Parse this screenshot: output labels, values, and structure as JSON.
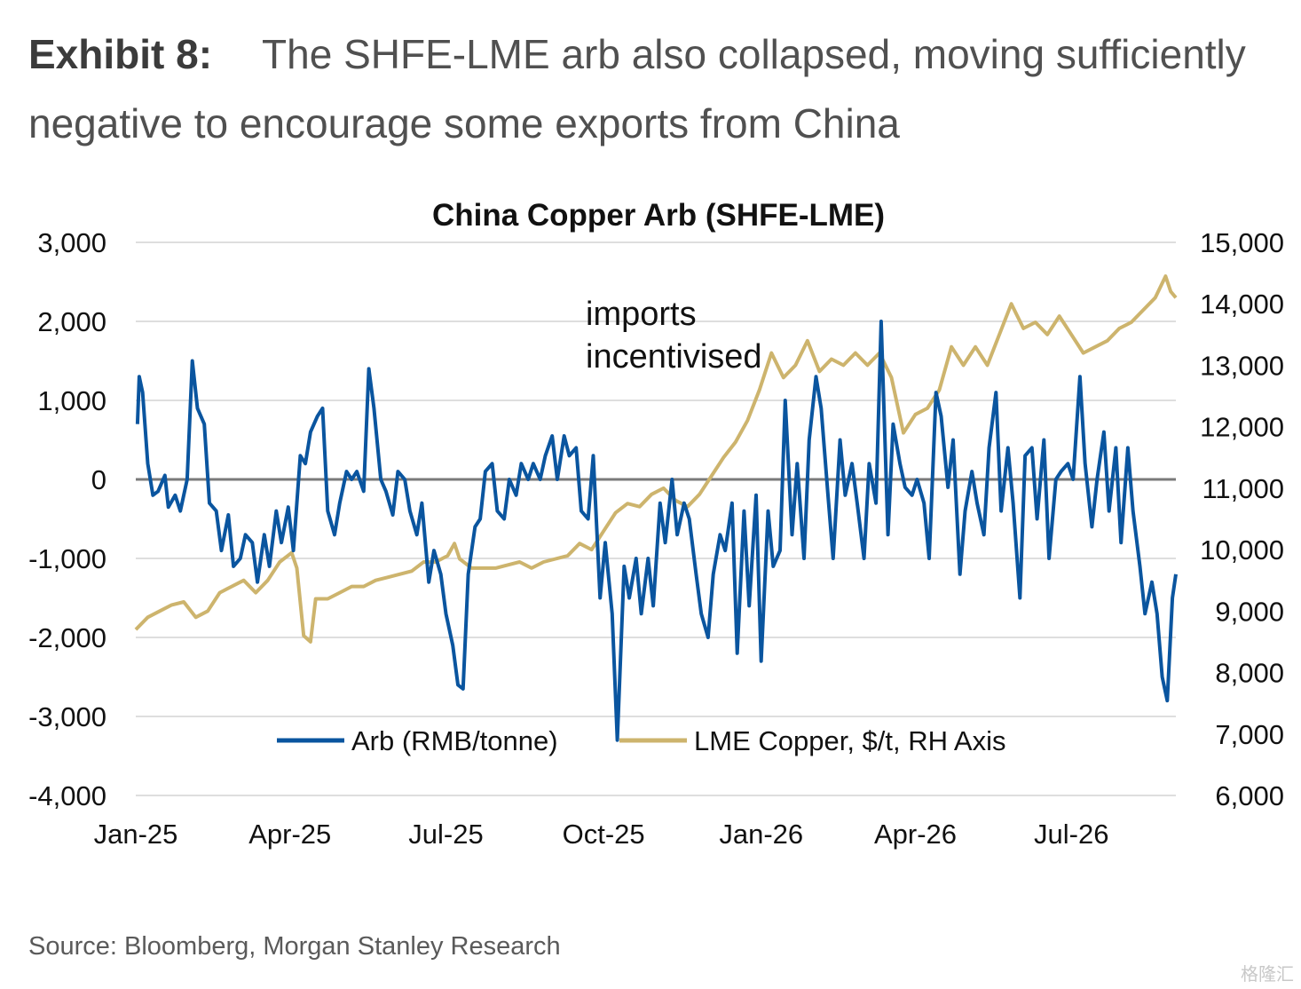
{
  "exhibit": {
    "label": "Exhibit 8:",
    "text": "The SHFE-LME arb also collapsed, moving sufficiently negative to encourage some exports from China"
  },
  "source": "Source: Bloomberg, Morgan Stanley Research",
  "watermark": "格隆汇",
  "chart_data": {
    "type": "line",
    "title": "China Copper Arb (SHFE-LME)",
    "annotation": "imports incentivised",
    "x_ticks": [
      "Jan-25",
      "Apr-25",
      "Jul-25",
      "Oct-25",
      "Jan-26",
      "Apr-26",
      "Jul-26"
    ],
    "y_left": {
      "ticks": [
        "3,000",
        "2,000",
        "1,000",
        "0",
        "-1,000",
        "-2,000",
        "-3,000",
        "-4,000"
      ],
      "min": -4000,
      "max": 3000
    },
    "y_right": {
      "ticks": [
        "15,000",
        "14,000",
        "13,000",
        "12,000",
        "11,000",
        "10,000",
        "9,000",
        "8,000",
        "7,000",
        "6,000"
      ],
      "min": 6000,
      "max": 15000
    },
    "x_range": [
      "2025-01-01",
      "2026-08-31"
    ],
    "grid": true,
    "zero_line": true,
    "legend_position": "bottom-center",
    "series": [
      {
        "name": "Arb (RMB/tonne)",
        "axis": "left",
        "color": "#0a559f",
        "points": [
          [
            "2025-01-02",
            700
          ],
          [
            "2025-01-03",
            1300
          ],
          [
            "2025-01-05",
            1100
          ],
          [
            "2025-01-08",
            200
          ],
          [
            "2025-01-11",
            -200
          ],
          [
            "2025-01-14",
            -150
          ],
          [
            "2025-01-18",
            50
          ],
          [
            "2025-01-20",
            -350
          ],
          [
            "2025-01-24",
            -200
          ],
          [
            "2025-01-27",
            -400
          ],
          [
            "2025-01-31",
            0
          ],
          [
            "2025-02-03",
            1500
          ],
          [
            "2025-02-06",
            900
          ],
          [
            "2025-02-10",
            700
          ],
          [
            "2025-02-13",
            -300
          ],
          [
            "2025-02-17",
            -400
          ],
          [
            "2025-02-20",
            -900
          ],
          [
            "2025-02-24",
            -450
          ],
          [
            "2025-02-27",
            -1100
          ],
          [
            "2025-03-03",
            -1000
          ],
          [
            "2025-03-06",
            -700
          ],
          [
            "2025-03-10",
            -800
          ],
          [
            "2025-03-13",
            -1300
          ],
          [
            "2025-03-17",
            -700
          ],
          [
            "2025-03-20",
            -1100
          ],
          [
            "2025-03-24",
            -400
          ],
          [
            "2025-03-27",
            -800
          ],
          [
            "2025-03-31",
            -350
          ],
          [
            "2025-04-03",
            -900
          ],
          [
            "2025-04-07",
            300
          ],
          [
            "2025-04-10",
            200
          ],
          [
            "2025-04-13",
            600
          ],
          [
            "2025-04-17",
            800
          ],
          [
            "2025-04-20",
            900
          ],
          [
            "2025-04-23",
            -400
          ],
          [
            "2025-04-27",
            -700
          ],
          [
            "2025-04-30",
            -300
          ],
          [
            "2025-05-04",
            100
          ],
          [
            "2025-05-07",
            0
          ],
          [
            "2025-05-10",
            100
          ],
          [
            "2025-05-14",
            -150
          ],
          [
            "2025-05-17",
            1400
          ],
          [
            "2025-05-20",
            900
          ],
          [
            "2025-05-24",
            0
          ],
          [
            "2025-05-27",
            -150
          ],
          [
            "2025-05-31",
            -450
          ],
          [
            "2025-06-03",
            100
          ],
          [
            "2025-06-07",
            0
          ],
          [
            "2025-06-10",
            -400
          ],
          [
            "2025-06-14",
            -700
          ],
          [
            "2025-06-17",
            -300
          ],
          [
            "2025-06-21",
            -1300
          ],
          [
            "2025-06-24",
            -900
          ],
          [
            "2025-06-28",
            -1200
          ],
          [
            "2025-07-01",
            -1700
          ],
          [
            "2025-07-05",
            -2100
          ],
          [
            "2025-07-08",
            -2600
          ],
          [
            "2025-07-11",
            -2650
          ],
          [
            "2025-07-14",
            -1200
          ],
          [
            "2025-07-18",
            -600
          ],
          [
            "2025-07-21",
            -500
          ],
          [
            "2025-07-24",
            100
          ],
          [
            "2025-07-28",
            200
          ],
          [
            "2025-07-31",
            -400
          ],
          [
            "2025-08-04",
            -500
          ],
          [
            "2025-08-07",
            0
          ],
          [
            "2025-08-11",
            -200
          ],
          [
            "2025-08-14",
            200
          ],
          [
            "2025-08-18",
            0
          ],
          [
            "2025-08-21",
            200
          ],
          [
            "2025-08-25",
            0
          ],
          [
            "2025-08-28",
            300
          ],
          [
            "2025-09-01",
            550
          ],
          [
            "2025-09-04",
            0
          ],
          [
            "2025-09-08",
            550
          ],
          [
            "2025-09-11",
            300
          ],
          [
            "2025-09-15",
            400
          ],
          [
            "2025-09-18",
            -400
          ],
          [
            "2025-09-22",
            -500
          ],
          [
            "2025-09-25",
            300
          ],
          [
            "2025-09-29",
            -1500
          ],
          [
            "2025-10-02",
            -800
          ],
          [
            "2025-10-06",
            -1700
          ],
          [
            "2025-10-09",
            -3300
          ],
          [
            "2025-10-13",
            -1100
          ],
          [
            "2025-10-16",
            -1500
          ],
          [
            "2025-10-20",
            -1000
          ],
          [
            "2025-10-23",
            -1700
          ],
          [
            "2025-10-27",
            -1000
          ],
          [
            "2025-10-30",
            -1600
          ],
          [
            "2025-11-03",
            -300
          ],
          [
            "2025-11-06",
            -800
          ],
          [
            "2025-11-10",
            0
          ],
          [
            "2025-11-13",
            -700
          ],
          [
            "2025-11-17",
            -300
          ],
          [
            "2025-11-20",
            -500
          ],
          [
            "2025-11-24",
            -1200
          ],
          [
            "2025-11-27",
            -1700
          ],
          [
            "2025-12-01",
            -2000
          ],
          [
            "2025-12-04",
            -1200
          ],
          [
            "2025-12-08",
            -700
          ],
          [
            "2025-12-11",
            -900
          ],
          [
            "2025-12-15",
            -300
          ],
          [
            "2025-12-18",
            -2200
          ],
          [
            "2025-12-22",
            -400
          ],
          [
            "2025-12-25",
            -1600
          ],
          [
            "2025-12-29",
            -200
          ],
          [
            "2026-01-01",
            -2300
          ],
          [
            "2026-01-05",
            -400
          ],
          [
            "2026-01-08",
            -1100
          ],
          [
            "2026-01-12",
            -900
          ],
          [
            "2026-01-15",
            1000
          ],
          [
            "2026-01-19",
            -700
          ],
          [
            "2026-01-22",
            200
          ],
          [
            "2026-01-26",
            -1000
          ],
          [
            "2026-01-29",
            500
          ],
          [
            "2026-02-02",
            1300
          ],
          [
            "2026-02-05",
            900
          ],
          [
            "2026-02-09",
            -200
          ],
          [
            "2026-02-12",
            -1000
          ],
          [
            "2026-02-16",
            500
          ],
          [
            "2026-02-19",
            -200
          ],
          [
            "2026-02-23",
            200
          ],
          [
            "2026-02-26",
            -300
          ],
          [
            "2026-03-02",
            -1000
          ],
          [
            "2026-03-05",
            200
          ],
          [
            "2026-03-09",
            -300
          ],
          [
            "2026-03-12",
            2000
          ],
          [
            "2026-03-16",
            -700
          ],
          [
            "2026-03-19",
            700
          ],
          [
            "2026-03-23",
            200
          ],
          [
            "2026-03-26",
            -100
          ],
          [
            "2026-03-30",
            -200
          ],
          [
            "2026-04-02",
            0
          ],
          [
            "2026-04-06",
            -300
          ],
          [
            "2026-04-09",
            -1000
          ],
          [
            "2026-04-13",
            1100
          ],
          [
            "2026-04-16",
            800
          ],
          [
            "2026-04-20",
            -100
          ],
          [
            "2026-04-23",
            500
          ],
          [
            "2026-04-27",
            -1200
          ],
          [
            "2026-04-30",
            -400
          ],
          [
            "2026-05-04",
            100
          ],
          [
            "2026-05-07",
            -300
          ],
          [
            "2026-05-11",
            -700
          ],
          [
            "2026-05-14",
            400
          ],
          [
            "2026-05-18",
            1100
          ],
          [
            "2026-05-21",
            -400
          ],
          [
            "2026-05-25",
            400
          ],
          [
            "2026-05-28",
            -300
          ],
          [
            "2026-06-01",
            -1500
          ],
          [
            "2026-06-04",
            300
          ],
          [
            "2026-06-08",
            400
          ],
          [
            "2026-06-11",
            -500
          ],
          [
            "2026-06-15",
            500
          ],
          [
            "2026-06-18",
            -1000
          ],
          [
            "2026-06-22",
            0
          ],
          [
            "2026-06-25",
            100
          ],
          [
            "2026-06-29",
            200
          ],
          [
            "2026-07-02",
            0
          ],
          [
            "2026-07-06",
            1300
          ],
          [
            "2026-07-09",
            200
          ],
          [
            "2026-07-13",
            -600
          ],
          [
            "2026-07-16",
            0
          ],
          [
            "2026-07-20",
            600
          ],
          [
            "2026-07-23",
            -400
          ],
          [
            "2026-07-27",
            400
          ],
          [
            "2026-07-30",
            -800
          ],
          [
            "2026-08-03",
            400
          ],
          [
            "2026-08-06",
            -400
          ],
          [
            "2026-08-10",
            -1100
          ],
          [
            "2026-08-13",
            -1700
          ],
          [
            "2026-08-17",
            -1300
          ],
          [
            "2026-08-20",
            -1700
          ],
          [
            "2026-08-23",
            -2500
          ],
          [
            "2026-08-26",
            -2800
          ],
          [
            "2026-08-29",
            -1500
          ],
          [
            "2026-08-31",
            -1200
          ]
        ]
      },
      {
        "name": "LME Copper, $/t, RH Axis",
        "axis": "right",
        "color": "#cdb46d",
        "points": [
          [
            "2025-01-01",
            8700
          ],
          [
            "2025-01-08",
            8900
          ],
          [
            "2025-01-15",
            9000
          ],
          [
            "2025-01-22",
            9100
          ],
          [
            "2025-01-29",
            9150
          ],
          [
            "2025-02-05",
            8900
          ],
          [
            "2025-02-12",
            9000
          ],
          [
            "2025-02-19",
            9300
          ],
          [
            "2025-02-26",
            9400
          ],
          [
            "2025-03-05",
            9500
          ],
          [
            "2025-03-12",
            9300
          ],
          [
            "2025-03-19",
            9500
          ],
          [
            "2025-03-26",
            9800
          ],
          [
            "2025-04-02",
            9950
          ],
          [
            "2025-04-05",
            9700
          ],
          [
            "2025-04-09",
            8600
          ],
          [
            "2025-04-13",
            8500
          ],
          [
            "2025-04-16",
            9200
          ],
          [
            "2025-04-23",
            9200
          ],
          [
            "2025-04-30",
            9300
          ],
          [
            "2025-05-07",
            9400
          ],
          [
            "2025-05-14",
            9400
          ],
          [
            "2025-05-21",
            9500
          ],
          [
            "2025-05-28",
            9550
          ],
          [
            "2025-06-04",
            9600
          ],
          [
            "2025-06-11",
            9650
          ],
          [
            "2025-06-18",
            9800
          ],
          [
            "2025-06-25",
            9800
          ],
          [
            "2025-07-02",
            9900
          ],
          [
            "2025-07-06",
            10100
          ],
          [
            "2025-07-09",
            9850
          ],
          [
            "2025-07-16",
            9700
          ],
          [
            "2025-07-23",
            9700
          ],
          [
            "2025-07-30",
            9700
          ],
          [
            "2025-08-06",
            9750
          ],
          [
            "2025-08-13",
            9800
          ],
          [
            "2025-08-20",
            9700
          ],
          [
            "2025-08-27",
            9800
          ],
          [
            "2025-09-03",
            9850
          ],
          [
            "2025-09-10",
            9900
          ],
          [
            "2025-09-17",
            10100
          ],
          [
            "2025-09-24",
            10000
          ],
          [
            "2025-10-01",
            10300
          ],
          [
            "2025-10-08",
            10600
          ],
          [
            "2025-10-15",
            10750
          ],
          [
            "2025-10-22",
            10700
          ],
          [
            "2025-10-29",
            10900
          ],
          [
            "2025-11-05",
            11000
          ],
          [
            "2025-11-12",
            10800
          ],
          [
            "2025-11-19",
            10700
          ],
          [
            "2025-11-26",
            10900
          ],
          [
            "2025-12-03",
            11200
          ],
          [
            "2025-12-10",
            11500
          ],
          [
            "2025-12-17",
            11750
          ],
          [
            "2025-12-24",
            12100
          ],
          [
            "2025-12-31",
            12600
          ],
          [
            "2026-01-07",
            13200
          ],
          [
            "2026-01-14",
            12800
          ],
          [
            "2026-01-21",
            13000
          ],
          [
            "2026-01-28",
            13400
          ],
          [
            "2026-02-04",
            12900
          ],
          [
            "2026-02-11",
            13100
          ],
          [
            "2026-02-18",
            13000
          ],
          [
            "2026-02-25",
            13200
          ],
          [
            "2026-03-04",
            13000
          ],
          [
            "2026-03-11",
            13200
          ],
          [
            "2026-03-18",
            12800
          ],
          [
            "2026-03-25",
            11900
          ],
          [
            "2026-04-01",
            12200
          ],
          [
            "2026-04-08",
            12300
          ],
          [
            "2026-04-15",
            12600
          ],
          [
            "2026-04-22",
            13300
          ],
          [
            "2026-04-29",
            13000
          ],
          [
            "2026-05-06",
            13300
          ],
          [
            "2026-05-13",
            13000
          ],
          [
            "2026-05-20",
            13500
          ],
          [
            "2026-05-27",
            14000
          ],
          [
            "2026-06-03",
            13600
          ],
          [
            "2026-06-10",
            13700
          ],
          [
            "2026-06-17",
            13500
          ],
          [
            "2026-06-24",
            13800
          ],
          [
            "2026-07-01",
            13500
          ],
          [
            "2026-07-08",
            13200
          ],
          [
            "2026-07-15",
            13300
          ],
          [
            "2026-07-22",
            13400
          ],
          [
            "2026-07-29",
            13600
          ],
          [
            "2026-08-05",
            13700
          ],
          [
            "2026-08-12",
            13900
          ],
          [
            "2026-08-19",
            14100
          ],
          [
            "2026-08-25",
            14450
          ],
          [
            "2026-08-28",
            14200
          ],
          [
            "2026-08-31",
            14100
          ]
        ]
      }
    ]
  }
}
